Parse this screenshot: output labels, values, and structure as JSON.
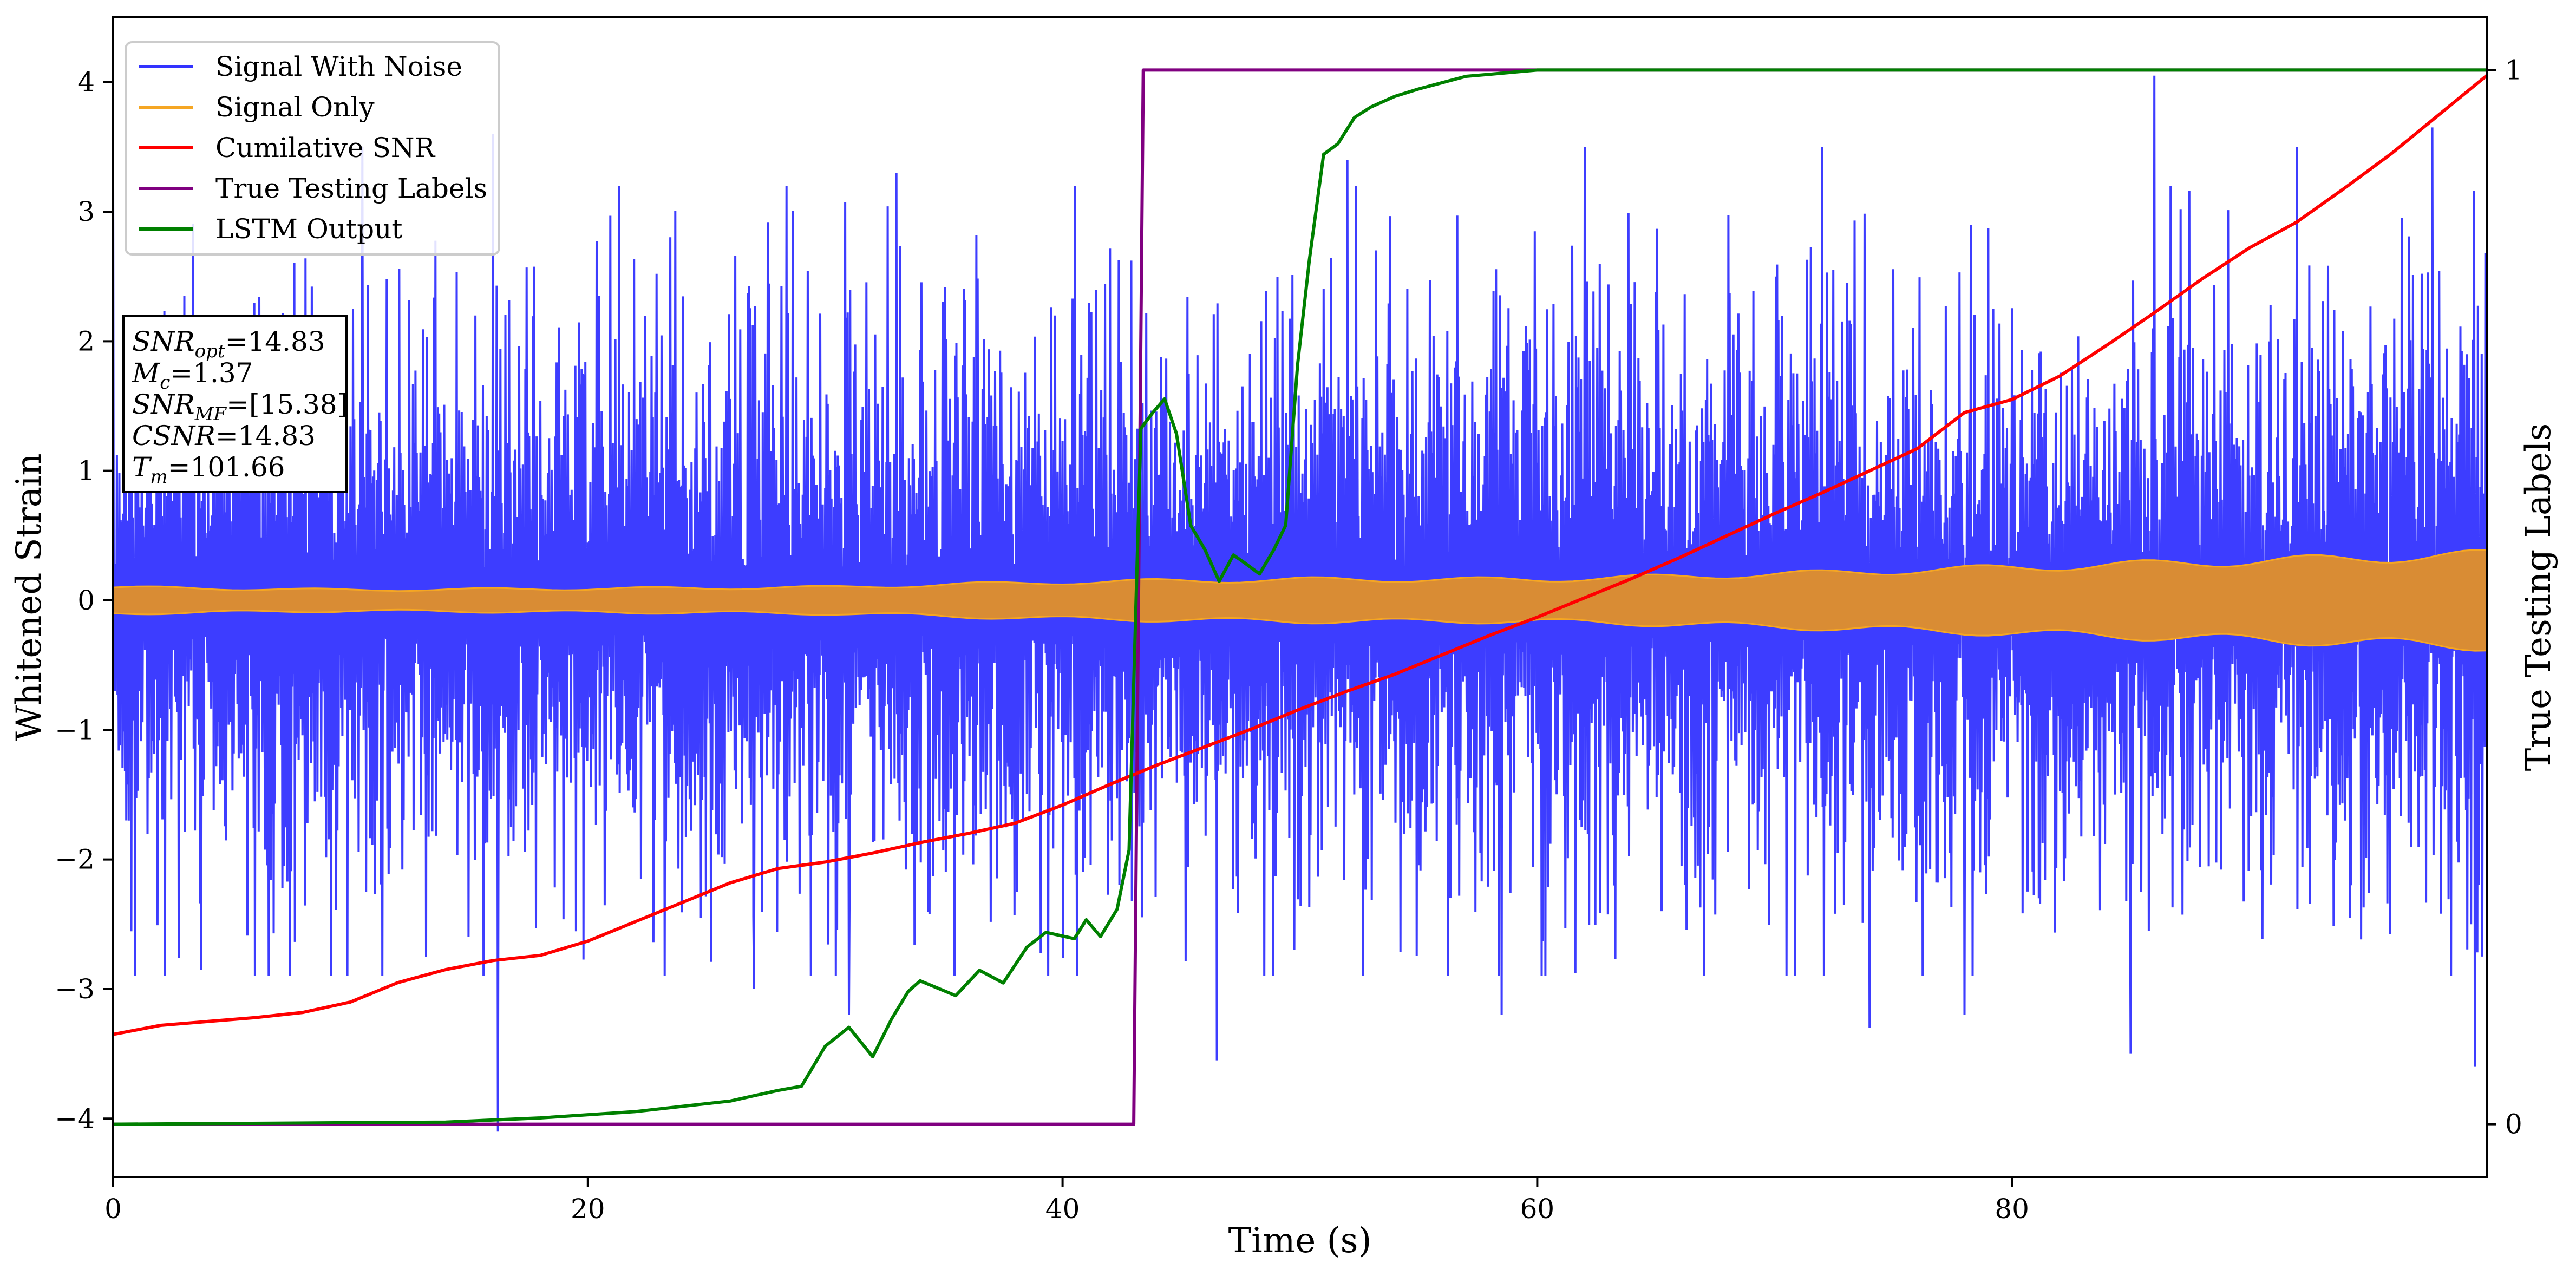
{
  "chart_data": {
    "type": "line",
    "xlabel": "Time (s)",
    "ylabel_left": "Whitened Strain",
    "ylabel_right": "True Testing Labels",
    "xlim": [
      0,
      100
    ],
    "ylim_left": [
      -4.45,
      4.5
    ],
    "ylim_right": [
      -0.05,
      1.05
    ],
    "x_ticks": [
      0,
      20,
      40,
      60,
      80
    ],
    "y_ticks_left": [
      -4,
      -3,
      -2,
      -1,
      0,
      1,
      2,
      3,
      4
    ],
    "y_ticks_right": [
      0,
      1
    ],
    "grid": false,
    "legend_position": "top-left",
    "legend": [
      {
        "label": "Signal With Noise",
        "color": "#3333ff"
      },
      {
        "label": "Signal Only",
        "color": "#f5a623"
      },
      {
        "label": "Cumilative SNR",
        "color": "#ff0000"
      },
      {
        "label": "True Testing Labels",
        "color": "#800080"
      },
      {
        "label": "LSTM Output",
        "color": "#008000"
      }
    ],
    "annotation": {
      "lines": [
        {
          "main": "SNR",
          "sub": "opt",
          "value": "=14.83"
        },
        {
          "main": "M",
          "sub": "c",
          "value": "=1.37"
        },
        {
          "main": "SNR",
          "sub": "MF",
          "value": "=[15.38]"
        },
        {
          "main": "CSNR",
          "sub": "",
          "value": "=14.83"
        },
        {
          "main": "T",
          "sub": "m",
          "value": "=101.66"
        }
      ]
    },
    "series": [
      {
        "name": "Signal With Noise",
        "axis": "left",
        "color": "#3333ff",
        "style": "dense noise band",
        "band_envelope": [
          [
            0,
            1.2
          ],
          [
            20,
            1.2
          ],
          [
            40,
            1.2
          ],
          [
            60,
            1.2
          ],
          [
            80,
            1.2
          ],
          [
            100,
            1.2
          ]
        ],
        "peaks_positive": [
          [
            10.5,
            3.5
          ],
          [
            16,
            3.6
          ],
          [
            33,
            3.3
          ],
          [
            52,
            3.4
          ],
          [
            62,
            3.5
          ],
          [
            72,
            3.5
          ],
          [
            86,
            4.05
          ],
          [
            92,
            3.5
          ],
          [
            97.7,
            3.65
          ]
        ],
        "peaks_negative": [
          [
            16.2,
            -4.1
          ],
          [
            27,
            -3.0
          ],
          [
            31,
            -3.2
          ],
          [
            46.5,
            -3.55
          ],
          [
            58.5,
            -3.2
          ],
          [
            74,
            -3.3
          ],
          [
            78,
            -3.2
          ],
          [
            85,
            -3.5
          ],
          [
            99.5,
            -3.6
          ]
        ]
      },
      {
        "name": "Signal Only",
        "axis": "left",
        "color": "#f5a623",
        "style": "chirp band",
        "amplitude_envelope": [
          [
            0,
            0.1
          ],
          [
            10,
            0.08
          ],
          [
            30,
            0.1
          ],
          [
            40,
            0.14
          ],
          [
            50,
            0.16
          ],
          [
            60,
            0.16
          ],
          [
            70,
            0.2
          ],
          [
            80,
            0.25
          ],
          [
            90,
            0.3
          ],
          [
            100,
            0.35
          ]
        ]
      },
      {
        "name": "Cumilative SNR",
        "axis": "left",
        "color": "#ff0000",
        "x": [
          0,
          2,
          4,
          6,
          8,
          10,
          12,
          14,
          16,
          18,
          20,
          22,
          24,
          26,
          28,
          30,
          32,
          34,
          36,
          38,
          40,
          42,
          44,
          46,
          48,
          50,
          52,
          54,
          56,
          58,
          60,
          62,
          64,
          66,
          68,
          70,
          72,
          74,
          76,
          78,
          80,
          82,
          84,
          86,
          88,
          90,
          92,
          94,
          96,
          98,
          100
        ],
        "y": [
          -3.35,
          -3.28,
          -3.25,
          -3.22,
          -3.18,
          -3.1,
          -2.95,
          -2.85,
          -2.78,
          -2.74,
          -2.63,
          -2.48,
          -2.33,
          -2.18,
          -2.07,
          -2.02,
          -1.95,
          -1.87,
          -1.8,
          -1.72,
          -1.58,
          -1.42,
          -1.27,
          -1.13,
          -0.99,
          -0.84,
          -0.7,
          -0.57,
          -0.42,
          -0.27,
          -0.13,
          0.02,
          0.17,
          0.33,
          0.5,
          0.67,
          0.83,
          1.0,
          1.17,
          1.45,
          1.55,
          1.73,
          1.97,
          2.22,
          2.48,
          2.72,
          2.92,
          3.18,
          3.45,
          3.75,
          4.05
        ]
      },
      {
        "name": "True Testing Labels",
        "axis": "right",
        "color": "#800080",
        "x": [
          0,
          43.0,
          43.4,
          100
        ],
        "y": [
          0,
          0,
          1,
          1
        ]
      },
      {
        "name": "LSTM Output",
        "axis": "right",
        "color": "#008000",
        "x": [
          0,
          14,
          18,
          22,
          24,
          26,
          28,
          29,
          30,
          31,
          32,
          32.8,
          33.5,
          34,
          35.5,
          36.5,
          37.5,
          38.5,
          39.3,
          40.5,
          41,
          41.6,
          42.3,
          42.8,
          43.3,
          43.8,
          44.3,
          44.8,
          45.4,
          46,
          46.6,
          47.2,
          47.7,
          48.3,
          48.9,
          49.4,
          49.9,
          50.4,
          51.0,
          51.6,
          52.3,
          53,
          54,
          55,
          56,
          57,
          58,
          59,
          60,
          61,
          62,
          63,
          64,
          80,
          100
        ],
        "y": [
          0,
          0.002,
          0.006,
          0.012,
          0.017,
          0.022,
          0.032,
          0.036,
          0.074,
          0.092,
          0.064,
          0.1,
          0.126,
          0.136,
          0.122,
          0.146,
          0.134,
          0.168,
          0.182,
          0.176,
          0.194,
          0.178,
          0.204,
          0.26,
          0.66,
          0.675,
          0.688,
          0.655,
          0.568,
          0.545,
          0.515,
          0.54,
          0.532,
          0.522,
          0.545,
          0.568,
          0.72,
          0.82,
          0.92,
          0.93,
          0.955,
          0.965,
          0.975,
          0.982,
          0.988,
          0.994,
          0.996,
          0.998,
          1.0,
          1.0,
          1.0,
          1.0,
          1.0,
          1.0,
          1.0
        ]
      }
    ]
  }
}
